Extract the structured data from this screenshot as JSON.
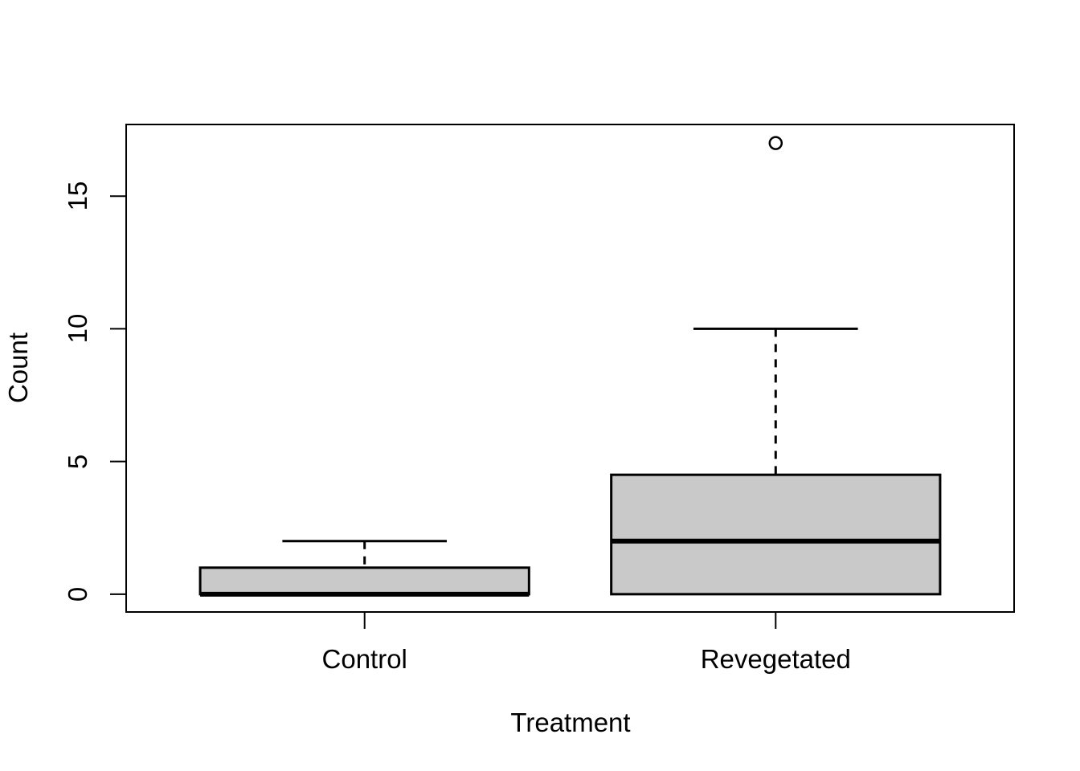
{
  "figure": {
    "background_color": "#ffffff",
    "foreground_color": "#000000"
  },
  "chart_data": {
    "type": "boxplot",
    "title": "",
    "xlabel": "Treatment",
    "ylabel": "Count",
    "categories": [
      "Control",
      "Revegetated"
    ],
    "yticks": [
      0,
      5,
      10,
      15
    ],
    "ylim": [
      -0.67,
      17.7
    ],
    "grid": false,
    "legend": "none",
    "box_fill": "#c9c9c9",
    "stroke_color": "#000000",
    "series": [
      {
        "name": "Control",
        "lower_whisker": 0,
        "q1": 0,
        "median": 0,
        "q3": 1,
        "upper_whisker": 2,
        "outliers": []
      },
      {
        "name": "Revegetated",
        "lower_whisker": 0,
        "q1": 0,
        "median": 2,
        "q3": 4.5,
        "upper_whisker": 10,
        "outliers": [
          17
        ]
      }
    ]
  }
}
